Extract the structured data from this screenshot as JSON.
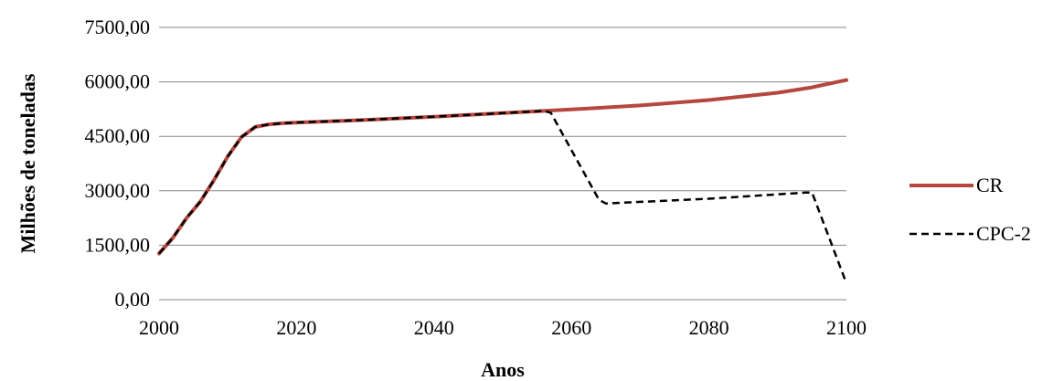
{
  "chart_data": {
    "type": "line",
    "title": "",
    "xlabel": "Anos",
    "ylabel": "Milhões de toneladas",
    "xlim": [
      2000,
      2100
    ],
    "ylim": [
      0,
      7500
    ],
    "xticks": [
      2000,
      2020,
      2040,
      2060,
      2080,
      2100
    ],
    "xtick_labels": [
      "2000",
      "2020",
      "2040",
      "2060",
      "2080",
      "2100"
    ],
    "yticks": [
      0,
      1500,
      3000,
      4500,
      6000,
      7500
    ],
    "ytick_labels": [
      "0,00",
      "1500,00",
      "3000,00",
      "4500,00",
      "6000,00",
      "7500,00"
    ],
    "grid": "horizontal",
    "legend_position": "right",
    "series": [
      {
        "name": "CR",
        "color": "#b5473f",
        "style": "solid",
        "x": [
          2000,
          2002,
          2004,
          2006,
          2008,
          2010,
          2012,
          2014,
          2016,
          2018,
          2020,
          2030,
          2040,
          2050,
          2056,
          2060,
          2070,
          2080,
          2090,
          2095,
          2100
        ],
        "y": [
          1270,
          1700,
          2250,
          2700,
          3300,
          3950,
          4480,
          4760,
          4830,
          4860,
          4880,
          4950,
          5040,
          5140,
          5200,
          5240,
          5350,
          5500,
          5700,
          5850,
          6050
        ]
      },
      {
        "name": "CPC-2",
        "color": "#000000",
        "style": "dashed",
        "x": [
          2000,
          2002,
          2004,
          2006,
          2008,
          2010,
          2012,
          2014,
          2016,
          2018,
          2020,
          2030,
          2040,
          2050,
          2056,
          2057,
          2064,
          2065,
          2080,
          2094,
          2095,
          2100
        ],
        "y": [
          1270,
          1700,
          2250,
          2700,
          3300,
          3950,
          4480,
          4760,
          4830,
          4860,
          4880,
          4950,
          5040,
          5140,
          5200,
          5150,
          2750,
          2650,
          2780,
          2950,
          2950,
          450
        ]
      }
    ]
  }
}
